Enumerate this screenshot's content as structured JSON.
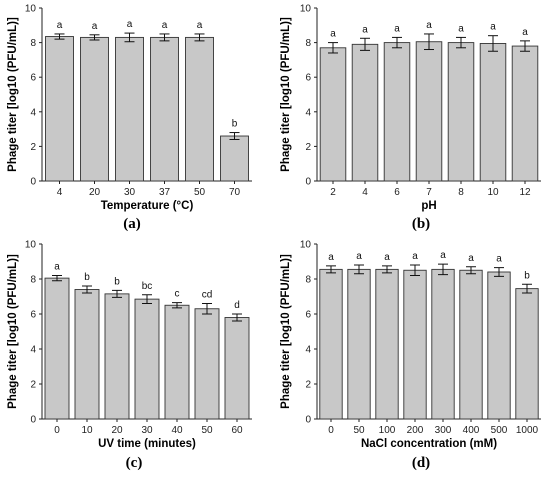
{
  "chart_data": [
    {
      "type": "bar",
      "panel_label": "(a)",
      "xlabel": "Temperature (°C)",
      "ylabel": "Phage titer [log10 (PFU/mL)]",
      "ylim": [
        0,
        10
      ],
      "yticks": [
        0,
        2,
        4,
        6,
        8,
        10
      ],
      "categories": [
        "4",
        "20",
        "30",
        "37",
        "50",
        "70"
      ],
      "values": [
        8.35,
        8.3,
        8.3,
        8.3,
        8.3,
        2.6
      ],
      "errors": [
        0.15,
        0.15,
        0.25,
        0.2,
        0.2,
        0.2
      ],
      "significance": [
        "a",
        "a",
        "a",
        "a",
        "a",
        "b"
      ],
      "bar_color": "#c8c8c8",
      "grid": false
    },
    {
      "type": "bar",
      "panel_label": "(b)",
      "xlabel": "pH",
      "ylabel": "Phage titer [log10 (PFU/mL)]",
      "ylim": [
        0,
        10
      ],
      "yticks": [
        0,
        2,
        4,
        6,
        8,
        10
      ],
      "categories": [
        "2",
        "4",
        "6",
        "7",
        "8",
        "10",
        "12"
      ],
      "values": [
        7.7,
        7.9,
        8.0,
        8.05,
        8.0,
        7.95,
        7.8
      ],
      "errors": [
        0.3,
        0.35,
        0.3,
        0.45,
        0.3,
        0.45,
        0.3
      ],
      "significance": [
        "a",
        "a",
        "a",
        "a",
        "a",
        "a",
        "a"
      ],
      "bar_color": "#c8c8c8",
      "grid": false
    },
    {
      "type": "bar",
      "panel_label": "(c)",
      "xlabel": "UV time (minutes)",
      "ylabel": "Phage titer [log10 (PFU/mL)]",
      "ylim": [
        0,
        10
      ],
      "yticks": [
        0,
        2,
        4,
        6,
        8,
        10
      ],
      "categories": [
        "0",
        "10",
        "20",
        "30",
        "40",
        "50",
        "60"
      ],
      "values": [
        8.05,
        7.4,
        7.15,
        6.85,
        6.5,
        6.3,
        5.8
      ],
      "errors": [
        0.15,
        0.2,
        0.2,
        0.25,
        0.15,
        0.3,
        0.2
      ],
      "significance": [
        "a",
        "b",
        "b",
        "bc",
        "c",
        "cd",
        "d"
      ],
      "bar_color": "#c8c8c8",
      "grid": false
    },
    {
      "type": "bar",
      "panel_label": "(d)",
      "xlabel": "NaCl concentration (mM)",
      "ylabel": "Phage titer [log10 (PFU/mL)]",
      "ylim": [
        0,
        10
      ],
      "yticks": [
        0,
        2,
        4,
        6,
        8,
        10
      ],
      "categories": [
        "0",
        "50",
        "100",
        "200",
        "300",
        "400",
        "500",
        "1000"
      ],
      "values": [
        8.55,
        8.55,
        8.55,
        8.5,
        8.55,
        8.5,
        8.4,
        7.45
      ],
      "errors": [
        0.2,
        0.25,
        0.2,
        0.3,
        0.3,
        0.2,
        0.25,
        0.25
      ],
      "significance": [
        "a",
        "a",
        "a",
        "a",
        "a",
        "a",
        "a",
        "b"
      ],
      "bar_color": "#c8c8c8",
      "grid": false
    }
  ]
}
